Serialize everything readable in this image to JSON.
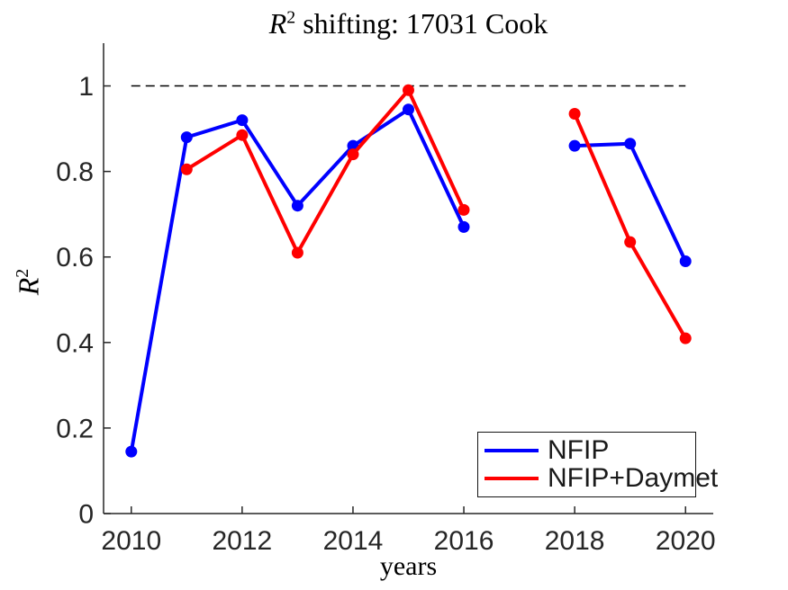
{
  "figure": {
    "title": {
      "base": "R",
      "superscript": "2",
      "rest": " shifting: 17031 Cook"
    },
    "ylabel": {
      "base": "R",
      "superscript": "2"
    }
  },
  "chart_data": {
    "type": "line",
    "title": "R^2 shifting: 17031 Cook",
    "xlabel": "years",
    "ylabel": "R^2",
    "x": [
      2010,
      2011,
      2012,
      2013,
      2014,
      2015,
      2016,
      2017,
      2018,
      2019,
      2020
    ],
    "series": [
      {
        "name": "NFIP",
        "color": "#0000ff",
        "values": [
          0.145,
          0.88,
          0.92,
          0.72,
          0.86,
          0.945,
          0.67,
          null,
          0.86,
          0.865,
          0.59
        ]
      },
      {
        "name": "NFIP+Daymet",
        "color": "#ff0000",
        "values": [
          null,
          0.805,
          0.885,
          0.61,
          0.84,
          0.99,
          0.71,
          null,
          0.935,
          0.635,
          0.41
        ]
      }
    ],
    "xlim": [
      2009.5,
      2020.5
    ],
    "ylim": [
      0,
      1.1
    ],
    "xticks": [
      2010,
      2012,
      2014,
      2016,
      2018,
      2020
    ],
    "xtick_labels": [
      "2010",
      "2012",
      "2014",
      "2016",
      "2018",
      "2020"
    ],
    "yticks": [
      0,
      0.2,
      0.4,
      0.6,
      0.8,
      1
    ],
    "ytick_labels": [
      "0",
      "0.2",
      "0.4",
      "0.6",
      "0.8",
      "1"
    ],
    "reference_line": {
      "y": 1,
      "style": "dashed",
      "color": "#000000",
      "x_start": 2010,
      "x_end": 2020
    },
    "grid": false,
    "legend": {
      "position": "southeast",
      "entries": [
        "NFIP",
        "NFIP+Daymet"
      ]
    },
    "axis_color": "#262626",
    "line_width": 4,
    "marker": "filled-circle",
    "marker_radius": 6.5
  }
}
